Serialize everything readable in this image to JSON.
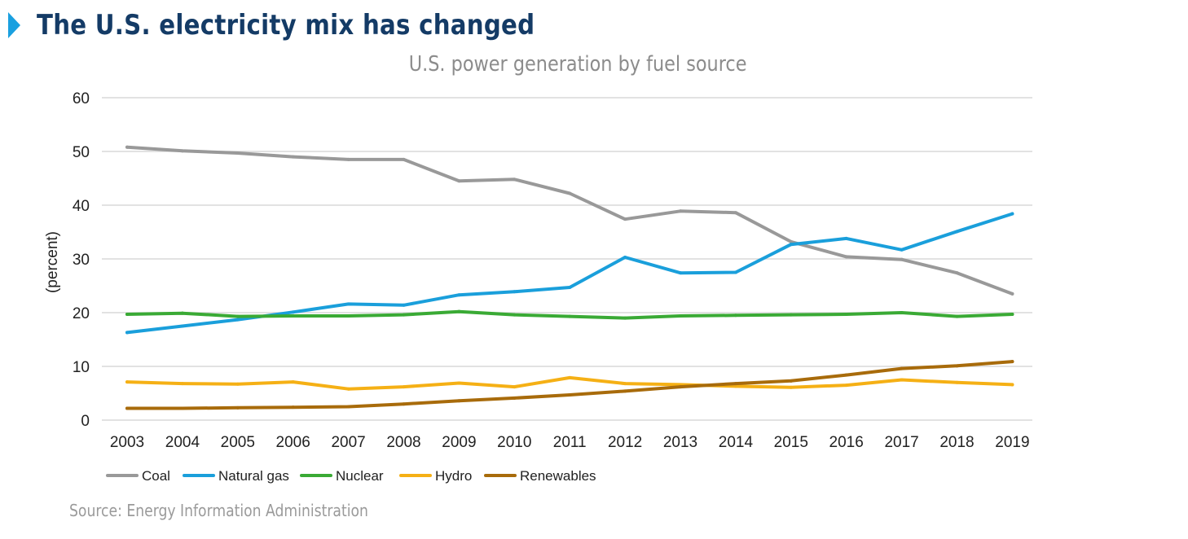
{
  "header": {
    "title": "The U.S. electricity mix has changed"
  },
  "chart_data": {
    "type": "line",
    "title": "U.S. power generation by fuel source",
    "xlabel": "",
    "ylabel": "(percent)",
    "ylim": [
      0,
      60
    ],
    "yticks": [
      0,
      10,
      20,
      30,
      40,
      50,
      60
    ],
    "grid": "horizontal",
    "legend_position": "bottom-left",
    "categories": [
      "2003",
      "2004",
      "2005",
      "2006",
      "2007",
      "2008",
      "2009",
      "2010",
      "2011",
      "2012",
      "2013",
      "2014",
      "2015",
      "2016",
      "2017",
      "2018",
      "2019"
    ],
    "series": [
      {
        "name": "Coal",
        "color": "#999999",
        "values": [
          50.8,
          50.1,
          49.7,
          49.0,
          48.5,
          48.5,
          44.5,
          44.8,
          42.2,
          37.4,
          38.9,
          38.6,
          33.2,
          30.4,
          29.9,
          27.4,
          23.5
        ]
      },
      {
        "name": "Natural gas",
        "color": "#1a9fdb",
        "values": [
          16.3,
          17.5,
          18.7,
          20.1,
          21.6,
          21.4,
          23.3,
          23.9,
          24.7,
          30.3,
          27.4,
          27.5,
          32.7,
          33.8,
          31.7,
          35.1,
          38.4
        ]
      },
      {
        "name": "Nuclear",
        "color": "#3aaa35",
        "values": [
          19.7,
          19.9,
          19.3,
          19.4,
          19.4,
          19.6,
          20.2,
          19.6,
          19.3,
          19.0,
          19.4,
          19.5,
          19.6,
          19.7,
          20.0,
          19.3,
          19.7
        ]
      },
      {
        "name": "Hydro",
        "color": "#f5b015",
        "values": [
          7.1,
          6.8,
          6.7,
          7.1,
          5.8,
          6.2,
          6.9,
          6.2,
          7.9,
          6.8,
          6.6,
          6.3,
          6.1,
          6.5,
          7.5,
          7.0,
          6.6
        ]
      },
      {
        "name": "Renewables",
        "color": "#a86b0b",
        "values": [
          2.2,
          2.2,
          2.3,
          2.4,
          2.5,
          3.0,
          3.6,
          4.1,
          4.7,
          5.4,
          6.2,
          6.8,
          7.3,
          8.4,
          9.6,
          10.1,
          10.9
        ]
      }
    ]
  },
  "footer": {
    "source": "Source: Energy Information Administration"
  }
}
